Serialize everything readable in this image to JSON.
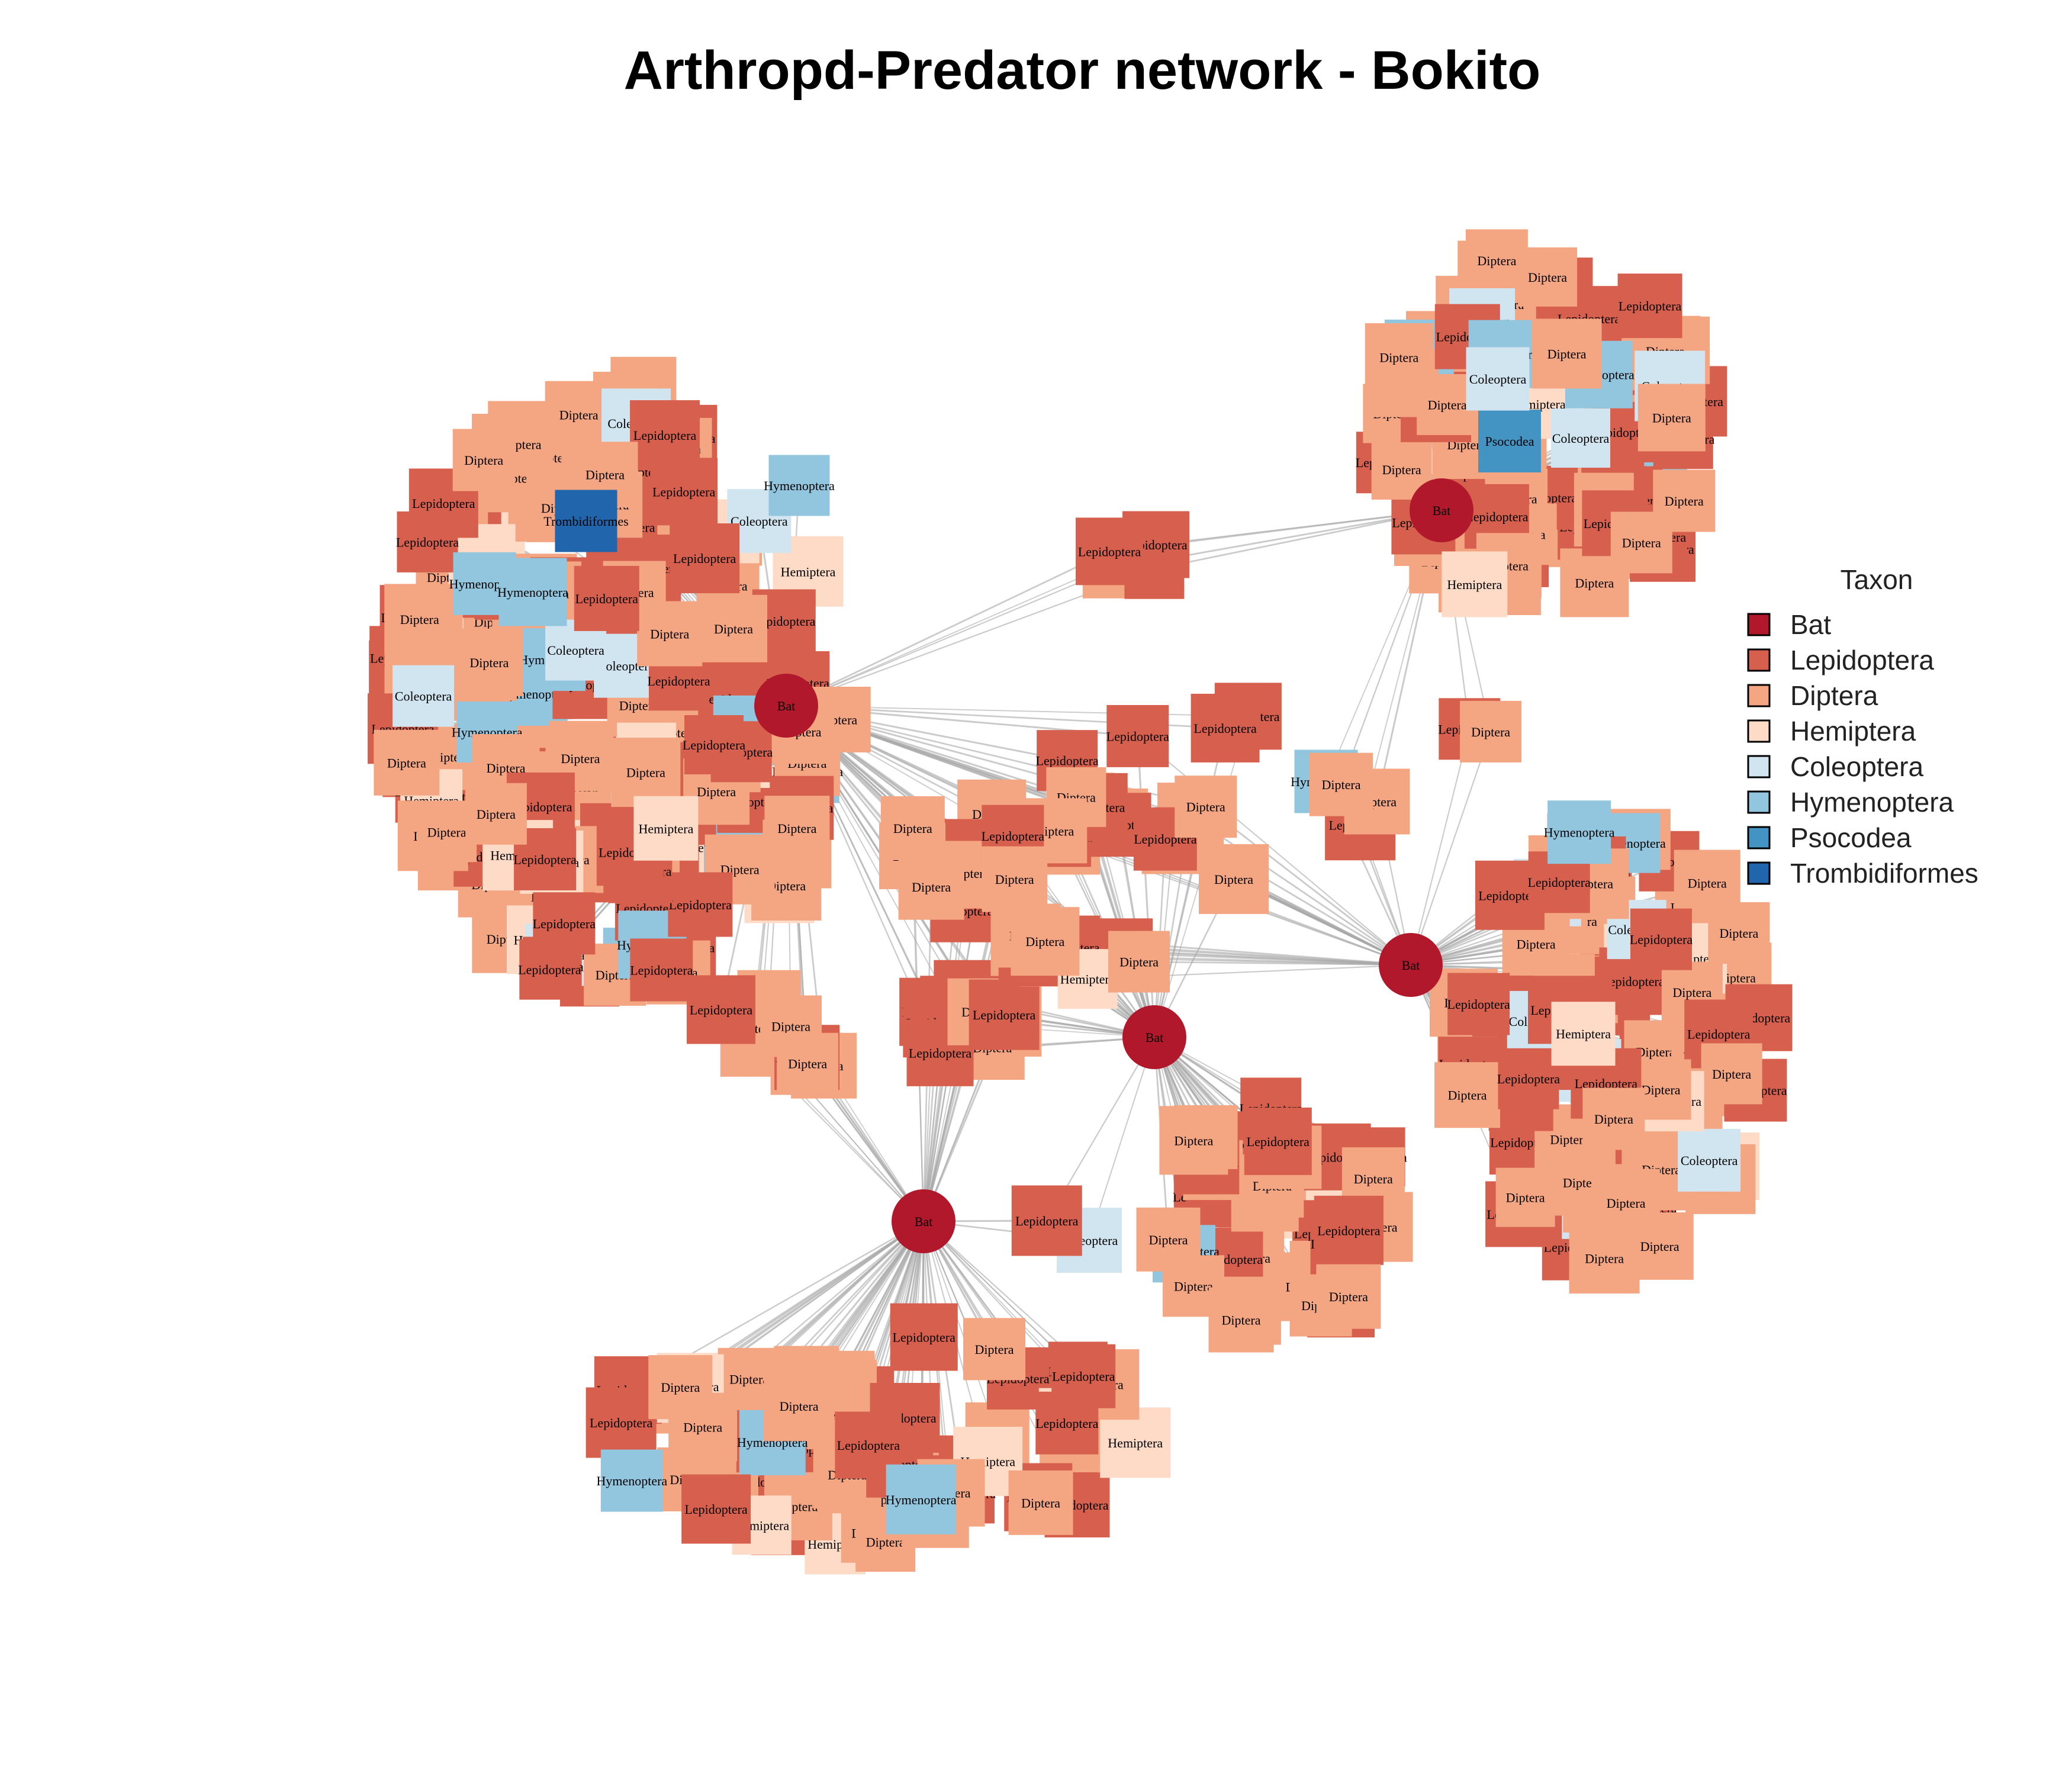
{
  "title": "Arthropd-Predator network - Bokito",
  "legend": {
    "title": "Taxon",
    "items": [
      {
        "label": "Bat",
        "color": "#b2182b"
      },
      {
        "label": "Lepidoptera",
        "color": "#d6604d"
      },
      {
        "label": "Diptera",
        "color": "#f4a582"
      },
      {
        "label": "Hemiptera",
        "color": "#fddbc7"
      },
      {
        "label": "Coleoptera",
        "color": "#d1e5f0"
      },
      {
        "label": "Hymenoptera",
        "color": "#92c5de"
      },
      {
        "label": "Psocodea",
        "color": "#4393c3"
      },
      {
        "label": "Trombidiformes",
        "color": "#2166ac"
      }
    ]
  },
  "bat_label": "Bat",
  "edge_color": "#a9a9a9",
  "diagram": {
    "bats": [
      {
        "id": "bat1",
        "label": "Bat"
      },
      {
        "id": "bat2",
        "label": "Bat"
      },
      {
        "id": "bat3",
        "label": "Bat"
      },
      {
        "id": "bat4",
        "label": "Bat"
      },
      {
        "id": "bat5",
        "label": "Bat"
      }
    ]
  }
}
